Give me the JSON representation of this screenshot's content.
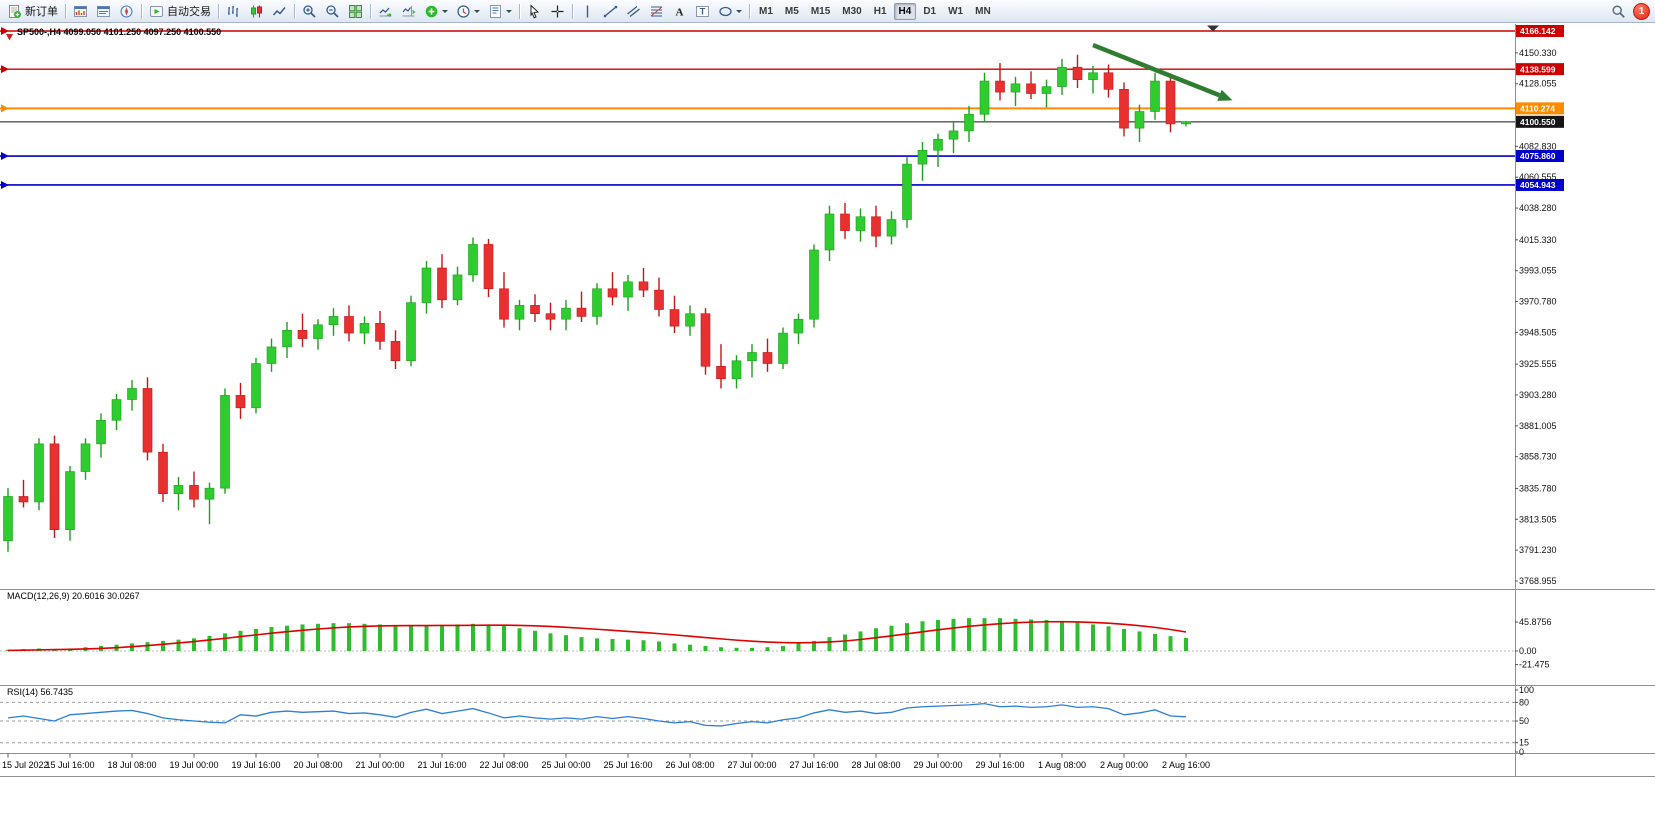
{
  "toolbar": {
    "groups": [
      [
        {
          "name": "new-order",
          "icon": "new-order-icon",
          "label": "新订单"
        }
      ],
      [
        {
          "name": "market-watch",
          "icon": "market-watch-icon"
        },
        {
          "name": "data-window",
          "icon": "data-window-icon"
        },
        {
          "name": "navigator",
          "icon": "navigator-icon"
        }
      ],
      [
        {
          "name": "auto-trading",
          "icon": "autotrade-icon",
          "label": "自动交易"
        }
      ],
      [
        {
          "name": "bar-chart-mode",
          "icon": "bars-icon"
        },
        {
          "name": "candlestick-mode",
          "icon": "candles-icon"
        },
        {
          "name": "line-chart-mode",
          "icon": "line-chart-icon"
        }
      ],
      [
        {
          "name": "zoom-in",
          "icon": "zoom-in-icon"
        },
        {
          "name": "zoom-out",
          "icon": "zoom-out-icon"
        },
        {
          "name": "tile-windows",
          "icon": "tile-windows-icon"
        }
      ],
      [
        {
          "name": "auto-scroll",
          "icon": "auto-scroll-icon"
        },
        {
          "name": "chart-shift",
          "icon": "chart-shift-icon"
        },
        {
          "name": "indicators",
          "icon": "add-indicator-icon",
          "caret": true
        },
        {
          "name": "periods",
          "icon": "clock-icon",
          "caret": true
        },
        {
          "name": "templates",
          "icon": "template-icon",
          "caret": true
        }
      ],
      [
        {
          "name": "cursor",
          "icon": "cursor-icon"
        },
        {
          "name": "crosshair",
          "icon": "crosshair-icon"
        }
      ],
      [
        {
          "name": "vertical-line",
          "icon": "vline-icon"
        },
        {
          "name": "trendline",
          "icon": "trendline-icon"
        },
        {
          "name": "equidistant-channel",
          "icon": "channel-icon"
        },
        {
          "name": "fibonacci",
          "icon": "fibonacci-icon"
        },
        {
          "name": "text",
          "icon": "text-icon"
        },
        {
          "name": "text-label",
          "icon": "label-icon"
        },
        {
          "name": "shapes",
          "icon": "shapes-icon",
          "caret": true
        }
      ]
    ],
    "timeframes": [
      "M1",
      "M5",
      "M15",
      "M30",
      "H1",
      "H4",
      "D1",
      "W1",
      "MN"
    ],
    "active_timeframe": "H4",
    "notification_count": "1"
  },
  "chart": {
    "symbol_label": "SP500-,H4  4099.050 4101.250 4097.250 4100.550"
  },
  "chart_data": {
    "type": "candlestick",
    "symbol": "SP500-",
    "timeframe": "H4",
    "ohlc_current": {
      "open": "4099.050",
      "high": "4101.250",
      "low": "4097.250",
      "close": "4100.550"
    },
    "colors": {
      "bull": "#2ecc2e",
      "bull_dark": "#1f9e1f",
      "bear": "#e83030",
      "bear_dark": "#c01818",
      "macd_hist": "#2dbe2d",
      "macd_signal": "#e00000",
      "rsi_line": "#2a7fd4",
      "axis_text": "#111111"
    },
    "candles": [
      [
        3798,
        3836,
        3790,
        3830
      ],
      [
        3830,
        3842,
        3822,
        3826
      ],
      [
        3826,
        3872,
        3820,
        3868
      ],
      [
        3868,
        3874,
        3800,
        3806
      ],
      [
        3806,
        3852,
        3798,
        3848
      ],
      [
        3848,
        3872,
        3842,
        3868
      ],
      [
        3868,
        3890,
        3858,
        3885
      ],
      [
        3885,
        3904,
        3878,
        3900
      ],
      [
        3900,
        3914,
        3892,
        3908
      ],
      [
        3908,
        3916,
        3856,
        3862
      ],
      [
        3862,
        3868,
        3826,
        3832
      ],
      [
        3832,
        3844,
        3820,
        3838
      ],
      [
        3838,
        3848,
        3822,
        3828
      ],
      [
        3828,
        3840,
        3810,
        3836
      ],
      [
        3836,
        3908,
        3832,
        3903
      ],
      [
        3903,
        3912,
        3886,
        3894
      ],
      [
        3894,
        3930,
        3890,
        3926
      ],
      [
        3926,
        3944,
        3920,
        3938
      ],
      [
        3938,
        3956,
        3930,
        3950
      ],
      [
        3950,
        3962,
        3938,
        3944
      ],
      [
        3944,
        3958,
        3936,
        3954
      ],
      [
        3954,
        3966,
        3946,
        3960
      ],
      [
        3960,
        3968,
        3942,
        3948
      ],
      [
        3948,
        3960,
        3940,
        3955
      ],
      [
        3955,
        3964,
        3936,
        3942
      ],
      [
        3942,
        3950,
        3922,
        3928
      ],
      [
        3928,
        3975,
        3924,
        3970
      ],
      [
        3970,
        4000,
        3962,
        3995
      ],
      [
        3995,
        4005,
        3966,
        3972
      ],
      [
        3972,
        3996,
        3968,
        3990
      ],
      [
        3990,
        4017,
        3985,
        4012
      ],
      [
        4012,
        4016,
        3974,
        3980
      ],
      [
        3980,
        3992,
        3952,
        3958
      ],
      [
        3958,
        3972,
        3950,
        3968
      ],
      [
        3968,
        3976,
        3956,
        3962
      ],
      [
        3962,
        3970,
        3950,
        3958
      ],
      [
        3958,
        3972,
        3950,
        3966
      ],
      [
        3966,
        3978,
        3956,
        3960
      ],
      [
        3960,
        3984,
        3954,
        3980
      ],
      [
        3980,
        3992,
        3968,
        3974
      ],
      [
        3974,
        3990,
        3964,
        3985
      ],
      [
        3985,
        3995,
        3974,
        3979
      ],
      [
        3979,
        3988,
        3960,
        3965
      ],
      [
        3965,
        3975,
        3948,
        3953
      ],
      [
        3953,
        3968,
        3946,
        3962
      ],
      [
        3962,
        3966,
        3918,
        3924
      ],
      [
        3924,
        3940,
        3908,
        3915
      ],
      [
        3915,
        3932,
        3908,
        3928
      ],
      [
        3928,
        3940,
        3916,
        3934
      ],
      [
        3934,
        3944,
        3920,
        3926
      ],
      [
        3926,
        3952,
        3922,
        3948
      ],
      [
        3948,
        3962,
        3940,
        3958
      ],
      [
        3958,
        4012,
        3952,
        4008
      ],
      [
        4008,
        4040,
        4000,
        4034
      ],
      [
        4034,
        4042,
        4016,
        4022
      ],
      [
        4022,
        4038,
        4014,
        4032
      ],
      [
        4032,
        4040,
        4010,
        4018
      ],
      [
        4018,
        4036,
        4012,
        4030
      ],
      [
        4030,
        4075,
        4024,
        4070
      ],
      [
        4070,
        4086,
        4058,
        4080
      ],
      [
        4080,
        4092,
        4068,
        4088
      ],
      [
        4088,
        4100,
        4078,
        4094
      ],
      [
        4094,
        4112,
        4086,
        4106
      ],
      [
        4106,
        4136,
        4100,
        4130
      ],
      [
        4130,
        4143,
        4116,
        4122
      ],
      [
        4122,
        4133,
        4112,
        4128
      ],
      [
        4128,
        4137,
        4117,
        4121
      ],
      [
        4121,
        4131,
        4111,
        4126
      ],
      [
        4126,
        4146,
        4120,
        4140
      ],
      [
        4140,
        4149,
        4125,
        4131
      ],
      [
        4131,
        4141,
        4121,
        4136
      ],
      [
        4136,
        4142,
        4118,
        4124
      ],
      [
        4124,
        4129,
        4090,
        4096
      ],
      [
        4096,
        4113,
        4086,
        4108
      ],
      [
        4108,
        4136,
        4102,
        4130
      ],
      [
        4130,
        4133,
        4093,
        4099.05
      ],
      [
        4099.05,
        4101.25,
        4097.25,
        4100.55
      ]
    ],
    "price_lines": [
      {
        "label": "4166.142",
        "price": 4166.142,
        "color": "#cc0000",
        "width": 1.4,
        "anchor": true
      },
      {
        "label": "4138.599",
        "price": 4138.599,
        "color": "#cc0000",
        "width": 1.4,
        "anchor": true
      },
      {
        "label": "4110.274",
        "price": 4110.274,
        "color": "#ff8c00",
        "width": 2,
        "anchor": true
      },
      {
        "label": "4100.550",
        "price": 4100.55,
        "color": "#151515",
        "width": 1,
        "anchor": false
      },
      {
        "label": "4075.860",
        "price": 4075.86,
        "color": "#0000cc",
        "width": 1.6,
        "anchor": true
      },
      {
        "label": "4054.943",
        "price": 4054.943,
        "color": "#0000cc",
        "width": 1.6,
        "anchor": true
      }
    ],
    "price_axis_labels": [
      "4150.330",
      "4128.055",
      "4082.830",
      "4060.555",
      "4038.280",
      "4015.330",
      "3993.055",
      "3970.780",
      "3948.505",
      "3925.555",
      "3903.280",
      "3881.005",
      "3858.730",
      "3835.780",
      "3813.505",
      "3791.230",
      "3768.955"
    ],
    "time_axis": [
      {
        "label": "15 Jul 2022",
        "candle": 0
      },
      {
        "label": "15 Jul 16:00",
        "candle": 4
      },
      {
        "label": "18 Jul 08:00",
        "candle": 8
      },
      {
        "label": "19 Jul 00:00",
        "candle": 12
      },
      {
        "label": "19 Jul 16:00",
        "candle": 16
      },
      {
        "label": "20 Jul 08:00",
        "candle": 20
      },
      {
        "label": "21 Jul 00:00",
        "candle": 24
      },
      {
        "label": "21 Jul 16:00",
        "candle": 28
      },
      {
        "label": "22 Jul 08:00",
        "candle": 32
      },
      {
        "label": "25 Jul 00:00",
        "candle": 36
      },
      {
        "label": "25 Jul 16:00",
        "candle": 40
      },
      {
        "label": "26 Jul 08:00",
        "candle": 44
      },
      {
        "label": "27 Jul 00:00",
        "candle": 48
      },
      {
        "label": "27 Jul 16:00",
        "candle": 52
      },
      {
        "label": "28 Jul 08:00",
        "candle": 56
      },
      {
        "label": "29 Jul 00:00",
        "candle": 60
      },
      {
        "label": "29 Jul 16:00",
        "candle": 64
      },
      {
        "label": "1 Aug 08:00",
        "candle": 68
      },
      {
        "label": "2 Aug 00:00",
        "candle": 72
      },
      {
        "label": "2 Aug 16:00",
        "candle": 76
      }
    ],
    "annotation_arrow": {
      "from_candle": 70,
      "from_price": 4156,
      "to_candle": 79,
      "to_price": 4116,
      "color": "#2e7d32",
      "width": 4.5
    },
    "indicators": {
      "macd": {
        "label": "MACD(12,26,9) 20.6016 30.0267",
        "params": "12,26,9",
        "value_main": 20.6016,
        "value_signal": 30.0267,
        "axis_labels": [
          "45.8756",
          "0.00",
          "-21.475"
        ],
        "main": [
          2,
          3,
          4,
          3,
          4,
          6,
          8,
          10,
          12,
          14,
          16,
          18,
          20,
          24,
          28,
          32,
          35,
          38,
          40,
          42,
          43,
          44,
          44,
          43,
          42,
          41,
          40,
          40,
          41,
          42,
          43,
          42,
          40,
          36,
          32,
          28,
          25,
          22,
          20,
          19,
          18,
          17,
          15,
          12,
          10,
          8,
          6,
          5,
          5,
          6,
          8,
          12,
          16,
          22,
          26,
          31,
          36,
          40,
          44,
          47,
          49,
          51,
          52,
          52,
          52,
          51,
          50,
          49,
          47,
          45,
          42,
          39,
          35,
          31,
          27,
          23.5,
          20.6
        ],
        "signal": [
          1,
          1.3,
          1.8,
          2.2,
          2.6,
          3.2,
          4,
          5.2,
          6.8,
          8.6,
          10.6,
          12.8,
          15,
          17.5,
          20,
          22.8,
          25.5,
          28.2,
          30.5,
          32.8,
          34.8,
          36.6,
          38,
          39,
          39.6,
          40,
          40.2,
          40.3,
          40.4,
          40.5,
          40.7,
          40.9,
          40.9,
          40.5,
          39.8,
          38.8,
          37.5,
          36,
          34.4,
          32.7,
          31,
          29.3,
          27.5,
          25.5,
          23.4,
          21.3,
          19.2,
          17.2,
          15.5,
          14.2,
          13.3,
          13,
          13.3,
          14.4,
          15.8,
          18.2,
          21,
          24,
          27.2,
          30.4,
          33.5,
          36.4,
          39,
          41.3,
          43.2,
          44.7,
          45.7,
          46.3,
          46.4,
          46,
          45.2,
          44,
          42.3,
          40.1,
          37.4,
          34,
          30.03
        ]
      },
      "rsi": {
        "label": "RSI(14) 56.7435",
        "period": 14,
        "value": 56.7435,
        "levels": [
          80,
          50,
          15
        ],
        "axis_labels": [
          "100",
          "80",
          "50",
          "15",
          "0"
        ],
        "values": [
          55,
          58,
          54,
          50,
          60,
          62,
          64,
          66,
          67,
          62,
          55,
          52,
          50,
          48,
          47,
          60,
          58,
          64,
          66,
          64,
          65,
          66,
          62,
          63,
          60,
          56,
          64,
          69,
          62,
          66,
          70,
          63,
          55,
          58,
          55,
          53,
          55,
          53,
          57,
          54,
          57,
          54,
          50,
          47,
          49,
          43,
          42,
          46,
          49,
          47,
          52,
          55,
          63,
          68,
          64,
          66,
          62,
          64,
          71,
          73,
          74,
          75,
          76,
          78,
          73,
          74,
          72,
          73,
          76,
          72,
          73,
          70,
          60,
          63,
          68,
          58,
          56.74
        ]
      }
    }
  }
}
